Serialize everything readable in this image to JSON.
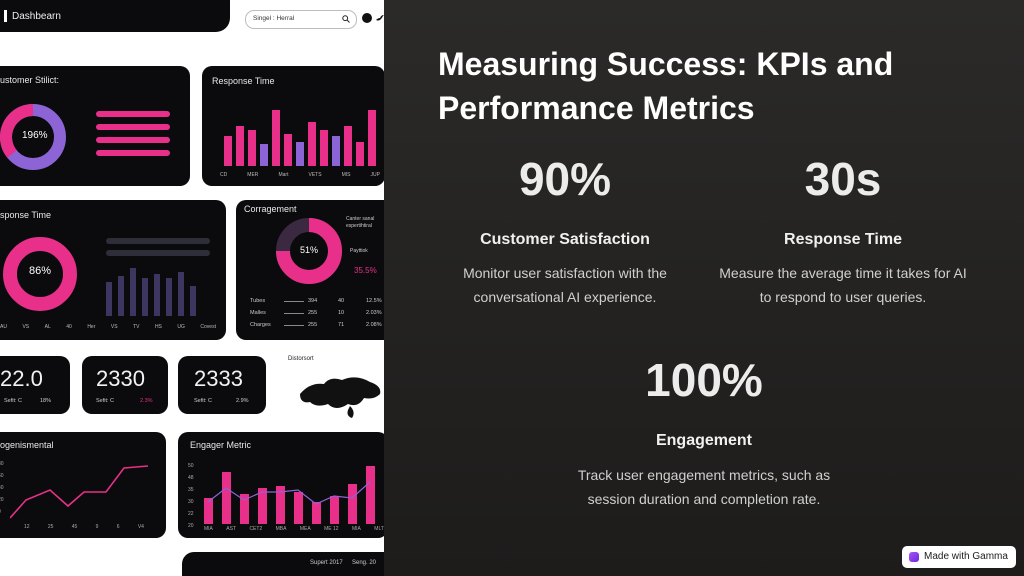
{
  "dashboard": {
    "brand": "Dashbearn",
    "search_text": "Singel : Herral",
    "cards": {
      "satisfaction": {
        "title": "ustomer Stilict:",
        "donut_value": "196%"
      },
      "response_top": {
        "title": "Response Time",
        "axis": [
          "CD",
          "MER",
          "Mart",
          "VETS",
          "MIS",
          "JUP"
        ]
      },
      "response_mid": {
        "title": "sponse Time",
        "donut_value": "86%",
        "axis": [
          "AU",
          "VS",
          "AL",
          "40",
          "Her",
          "VS",
          "TV",
          "HS",
          "UG",
          "Covest"
        ]
      },
      "corragement": {
        "title": "Corragement",
        "donut_value": "51%",
        "legend": [
          "Canter sanal",
          "espertihtiral",
          "Payttiok",
          "35.5%"
        ],
        "rows": [
          {
            "label": "Tubes",
            "a": "394",
            "b": "40",
            "c": "12.5%"
          },
          {
            "label": "Malles",
            "a": "255",
            "b": "10",
            "c": "2.03%"
          },
          {
            "label": "Charges",
            "a": "255",
            "b": "71",
            "c": "2.08%"
          }
        ]
      },
      "stat1": {
        "value": "22.0",
        "label": "Sefit: C",
        "note": "18%"
      },
      "stat2": {
        "value": "2330",
        "label": "Sefit: C",
        "note": "2.3%"
      },
      "stat3": {
        "value": "2333",
        "label": "Sefit: C",
        "note": "2.9%"
      },
      "map": {
        "title": "Distorsort"
      },
      "gensimental": {
        "title": "ogenismental",
        "y_axis": [
          "80",
          "60",
          "40",
          "20",
          "0"
        ],
        "x_axis": [
          "12",
          "25",
          "45",
          "9",
          "6",
          "V4"
        ]
      },
      "engager": {
        "title": "Engager Metric",
        "y_axis": [
          "50",
          "48",
          "35",
          "30",
          "22",
          "20"
        ],
        "x_axis": [
          "MIA",
          "AST",
          "CET2",
          "MBA",
          "MEA",
          "ME 12",
          "MIA",
          "MLT"
        ]
      }
    },
    "footer": [
      "Supert 2017",
      "Seng. 20"
    ]
  },
  "slide": {
    "title": "Measuring Success: KPIs and Performance Metrics",
    "kpis": [
      {
        "value": "90%",
        "heading": "Customer Satisfaction",
        "desc": "Monitor user satisfaction with the conversational AI experience."
      },
      {
        "value": "30s",
        "heading": "Response Time",
        "desc": "Measure the average time it takes for AI to respond to user queries."
      },
      {
        "value": "100%",
        "heading": "Engagement",
        "desc": "Track user engagement metrics, such as session duration and completion rate."
      }
    ]
  },
  "badge": {
    "label": "Made with Gamma"
  },
  "colors": {
    "accent_pink": "#e8308a",
    "accent_purple": "#8c64d6",
    "dark_bg": "#1c1b1b"
  }
}
